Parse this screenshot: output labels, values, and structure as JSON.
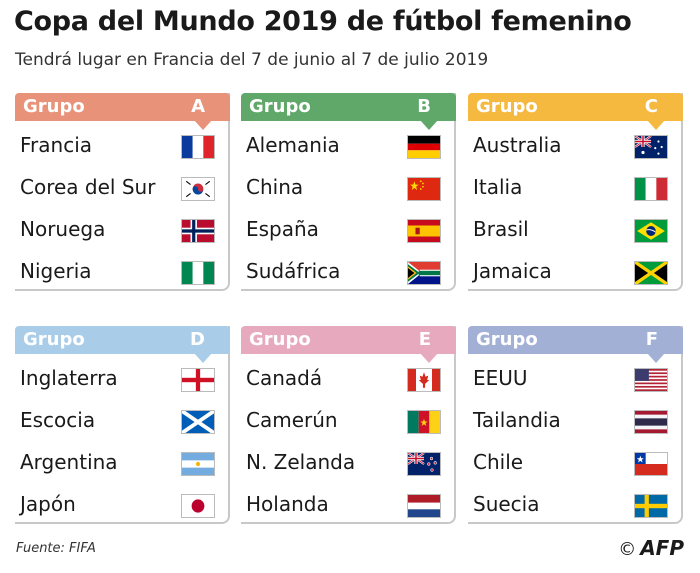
{
  "title": "Copa del Mundo 2019 de fútbol femenino",
  "subtitle": "Tendrá lugar en Francia del 7 de junio al 7 de julio 2019",
  "groups": [
    {
      "label": "Grupo",
      "letter": "A",
      "color": "#e8927a",
      "teams": [
        {
          "name": "Francia",
          "flag": "france-flag"
        },
        {
          "name": "Corea del Sur",
          "flag": "south-korea-flag"
        },
        {
          "name": "Noruega",
          "flag": "norway-flag"
        },
        {
          "name": "Nigeria",
          "flag": "nigeria-flag"
        }
      ]
    },
    {
      "label": "Grupo",
      "letter": "B",
      "color": "#5fa86a",
      "teams": [
        {
          "name": "Alemania",
          "flag": "germany-flag"
        },
        {
          "name": "China",
          "flag": "china-flag"
        },
        {
          "name": "España",
          "flag": "spain-flag"
        },
        {
          "name": "Sudáfrica",
          "flag": "south-africa-flag"
        }
      ]
    },
    {
      "label": "Grupo",
      "letter": "C",
      "color": "#f6b93f",
      "teams": [
        {
          "name": "Australia",
          "flag": "australia-flag"
        },
        {
          "name": "Italia",
          "flag": "italy-flag"
        },
        {
          "name": "Brasil",
          "flag": "brazil-flag"
        },
        {
          "name": "Jamaica",
          "flag": "jamaica-flag"
        }
      ]
    },
    {
      "label": "Grupo",
      "letter": "D",
      "color": "#a9cde8",
      "teams": [
        {
          "name": "Inglaterra",
          "flag": "england-flag"
        },
        {
          "name": "Escocia",
          "flag": "scotland-flag"
        },
        {
          "name": "Argentina",
          "flag": "argentina-flag"
        },
        {
          "name": "Japón",
          "flag": "japan-flag"
        }
      ]
    },
    {
      "label": "Grupo",
      "letter": "E",
      "color": "#e7a9bd",
      "teams": [
        {
          "name": "Canadá",
          "flag": "canada-flag"
        },
        {
          "name": "Camerún",
          "flag": "cameroon-flag"
        },
        {
          "name": "N. Zelanda",
          "flag": "new-zealand-flag"
        },
        {
          "name": "Holanda",
          "flag": "netherlands-flag"
        }
      ]
    },
    {
      "label": "Grupo",
      "letter": "F",
      "color": "#a3b0d6",
      "teams": [
        {
          "name": "EEUU",
          "flag": "usa-flag"
        },
        {
          "name": "Tailandia",
          "flag": "thailand-flag"
        },
        {
          "name": "Chile",
          "flag": "chile-flag"
        },
        {
          "name": "Suecia",
          "flag": "sweden-flag"
        }
      ]
    }
  ],
  "source": "Fuente: FIFA",
  "credit": {
    "copyright": "©",
    "agency": "AFP"
  }
}
